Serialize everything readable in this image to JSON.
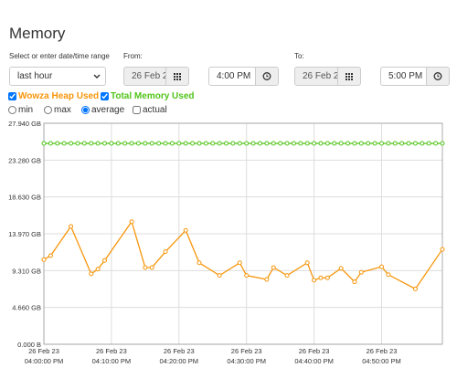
{
  "header": {
    "title": "Memory"
  },
  "form": {
    "range_label": "Select or enter date/time range",
    "range": "last hour",
    "from_label": "From:",
    "from_date": "26 Feb 2",
    "from_time": "4:00 PM",
    "to_label": "To:",
    "to_date": "26 Feb 2",
    "to_time": "5:00 PM",
    "modes": [
      "min",
      "max",
      "average",
      "actual"
    ]
  },
  "chart_data": {
    "type": "line",
    "series": [
      {
        "name": "Wowza Heap Used",
        "color": "#f7960b",
        "x": [
          "04:00:00 PM",
          "04:01:00 PM",
          "04:04:00 PM",
          "04:07:00 PM",
          "04:08:00 PM",
          "04:09:00 PM",
          "04:13:00 PM",
          "04:15:00 PM",
          "04:16:00 PM",
          "04:18:00 PM",
          "04:21:00 PM",
          "04:23:00 PM",
          "04:26:00 PM",
          "04:29:00 PM",
          "04:30:00 PM",
          "04:33:00 PM",
          "04:34:00 PM",
          "04:36:00 PM",
          "04:39:00 PM",
          "04:40:00 PM",
          "04:41:00 PM",
          "04:42:00 PM",
          "04:44:00 PM",
          "04:46:00 PM",
          "04:47:00 PM",
          "04:50:00 PM",
          "04:51:00 PM",
          "04:55:00 PM",
          "04:59:00 PM"
        ],
        "values": [
          10.7,
          11.2,
          14.9,
          8.9,
          9.5,
          10.6,
          15.5,
          9.7,
          9.7,
          11.7,
          14.4,
          10.3,
          8.7,
          10.3,
          8.7,
          8.2,
          9.7,
          8.7,
          10.3,
          8.1,
          8.4,
          8.4,
          9.6,
          7.9,
          9.1,
          9.8,
          8.8,
          7.0,
          12.0
        ]
      },
      {
        "name": "Total Memory Used",
        "color": "#52c41a",
        "x": [
          "04:00:00 PM",
          "04:01:00 PM",
          "04:02:00 PM",
          "04:03:00 PM",
          "04:04:00 PM",
          "04:05:00 PM",
          "04:06:00 PM",
          "04:07:00 PM",
          "04:08:00 PM",
          "04:09:00 PM",
          "04:10:00 PM",
          "04:11:00 PM",
          "04:12:00 PM",
          "04:13:00 PM",
          "04:14:00 PM",
          "04:15:00 PM",
          "04:16:00 PM",
          "04:17:00 PM",
          "04:18:00 PM",
          "04:19:00 PM",
          "04:20:00 PM",
          "04:21:00 PM",
          "04:22:00 PM",
          "04:23:00 PM",
          "04:24:00 PM",
          "04:25:00 PM",
          "04:26:00 PM",
          "04:27:00 PM",
          "04:28:00 PM",
          "04:29:00 PM",
          "04:30:00 PM",
          "04:31:00 PM",
          "04:32:00 PM",
          "04:33:00 PM",
          "04:34:00 PM",
          "04:35:00 PM",
          "04:36:00 PM",
          "04:37:00 PM",
          "04:38:00 PM",
          "04:39:00 PM",
          "04:40:00 PM",
          "04:41:00 PM",
          "04:42:00 PM",
          "04:43:00 PM",
          "04:44:00 PM",
          "04:45:00 PM",
          "04:46:00 PM",
          "04:47:00 PM",
          "04:48:00 PM",
          "04:49:00 PM",
          "04:50:00 PM",
          "04:51:00 PM",
          "04:52:00 PM",
          "04:53:00 PM",
          "04:54:00 PM",
          "04:55:00 PM",
          "04:56:00 PM",
          "04:57:00 PM",
          "04:58:00 PM",
          "04:59:00 PM"
        ],
        "values": [
          25.4,
          25.4,
          25.4,
          25.4,
          25.4,
          25.4,
          25.4,
          25.4,
          25.4,
          25.4,
          25.4,
          25.4,
          25.4,
          25.4,
          25.4,
          25.4,
          25.4,
          25.4,
          25.4,
          25.4,
          25.4,
          25.4,
          25.4,
          25.4,
          25.4,
          25.4,
          25.4,
          25.4,
          25.4,
          25.4,
          25.4,
          25.4,
          25.4,
          25.4,
          25.4,
          25.4,
          25.4,
          25.4,
          25.4,
          25.4,
          25.4,
          25.4,
          25.4,
          25.4,
          25.4,
          25.4,
          25.4,
          25.4,
          25.4,
          25.4,
          25.4,
          25.4,
          25.4,
          25.4,
          25.4,
          25.4,
          25.4,
          25.4,
          25.4,
          25.4
        ]
      }
    ],
    "xlim": [
      "04:00:00 PM",
      "04:59:00 PM"
    ],
    "xticks": [
      "26 Feb 23 04:00:00 PM",
      "26 Feb 23 04:10:00 PM",
      "26 Feb 23 04:20:00 PM",
      "26 Feb 23 04:30:00 PM",
      "26 Feb 23 04:40:00 PM",
      "26 Feb 23 04:50:00 PM"
    ],
    "ylim": [
      0,
      27.94
    ],
    "yticks": [
      {
        "value": 0,
        "label": "0.000 B"
      },
      {
        "value": 4.66,
        "label": "4.660 GB"
      },
      {
        "value": 9.31,
        "label": "9.310 GB"
      },
      {
        "value": 13.97,
        "label": "13.970 GB"
      },
      {
        "value": 18.63,
        "label": "18.630 GB"
      },
      {
        "value": 23.28,
        "label": "23.280 GB"
      },
      {
        "value": 27.94,
        "label": "27.940 GB"
      }
    ],
    "grid": true
  }
}
